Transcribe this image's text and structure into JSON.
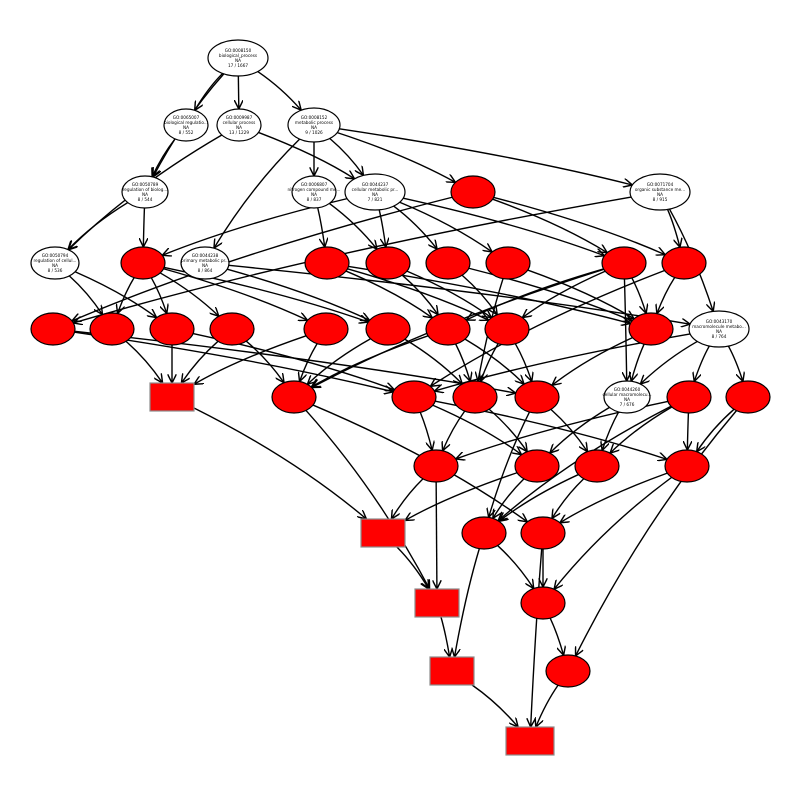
{
  "graph": {
    "nodes": [
      {
        "id": "n1",
        "lines": [
          "GO:0008150",
          "biological_process",
          "NA",
          "17 / 1667"
        ],
        "fill": "#ffffff",
        "shape": "ellipse"
      },
      {
        "id": "n2",
        "lines": [
          "GO:0065007",
          "biological regulatio...",
          "NA",
          "8 / 552"
        ],
        "fill": "#ffffff",
        "shape": "ellipse"
      },
      {
        "id": "n3",
        "lines": [
          "GO:0009987",
          "cellular process",
          "NA",
          "13 / 1229"
        ],
        "fill": "#ffffff",
        "shape": "ellipse"
      },
      {
        "id": "n4",
        "lines": [
          "GO:0008152",
          "metabolic process",
          "NA",
          "9 / 1026"
        ],
        "fill": "#ffffff",
        "shape": "ellipse"
      },
      {
        "id": "n5",
        "lines": [
          "GO:0050789",
          "regulation of biolog...",
          "NA",
          "8 / 544"
        ],
        "fill": "#ffffff",
        "shape": "ellipse"
      },
      {
        "id": "n6",
        "lines": [
          "GO:0006807",
          "nitrogen compound me...",
          "NA",
          "8 / 837"
        ],
        "fill": "#ffffff",
        "shape": "ellipse"
      },
      {
        "id": "n7",
        "lines": [
          "GO:0044237",
          "cellular metabolic pr...",
          "NA",
          "7 / 821"
        ],
        "fill": "#ffffff",
        "shape": "ellipse"
      },
      {
        "id": "n8",
        "lines": [
          "",
          "",
          "",
          ""
        ],
        "fill": "#ff0000",
        "shape": "ellipse"
      },
      {
        "id": "n9",
        "lines": [
          "GO:0071704",
          "organic substance me...",
          "NA",
          "8 / 915"
        ],
        "fill": "#ffffff",
        "shape": "ellipse"
      },
      {
        "id": "n10",
        "lines": [
          "GO:0050794",
          "regulation of cellul...",
          "NA",
          "8 / 536"
        ],
        "fill": "#ffffff",
        "shape": "ellipse"
      },
      {
        "id": "n11",
        "lines": [
          "",
          "",
          "",
          ""
        ],
        "fill": "#ff0000",
        "shape": "ellipse"
      },
      {
        "id": "n12",
        "lines": [
          "GO:0044238",
          "primary metabolic pr...",
          "NA",
          "8 / 864"
        ],
        "fill": "#ffffff",
        "shape": "ellipse"
      },
      {
        "id": "n13",
        "lines": [
          "",
          "",
          "",
          ""
        ],
        "fill": "#ff0000",
        "shape": "ellipse"
      },
      {
        "id": "n14",
        "lines": [
          "",
          "",
          "",
          ""
        ],
        "fill": "#ff0000",
        "shape": "ellipse"
      },
      {
        "id": "n15",
        "lines": [
          "",
          "",
          "",
          ""
        ],
        "fill": "#ff0000",
        "shape": "ellipse"
      },
      {
        "id": "n16",
        "lines": [
          "",
          "",
          "",
          ""
        ],
        "fill": "#ff0000",
        "shape": "ellipse"
      },
      {
        "id": "n17",
        "lines": [
          "",
          "",
          "",
          ""
        ],
        "fill": "#ff0000",
        "shape": "ellipse"
      },
      {
        "id": "n18",
        "lines": [
          "",
          "",
          "",
          ""
        ],
        "fill": "#ff0000",
        "shape": "ellipse"
      },
      {
        "id": "n19",
        "lines": [
          "",
          "",
          "",
          ""
        ],
        "fill": "#ff0000",
        "shape": "ellipse"
      },
      {
        "id": "n20",
        "lines": [
          "",
          "",
          "",
          ""
        ],
        "fill": "#ff0000",
        "shape": "ellipse"
      },
      {
        "id": "n21",
        "lines": [
          "",
          "",
          "",
          ""
        ],
        "fill": "#ff0000",
        "shape": "ellipse"
      },
      {
        "id": "n22",
        "lines": [
          "",
          "",
          "",
          ""
        ],
        "fill": "#ff0000",
        "shape": "ellipse"
      },
      {
        "id": "n23",
        "lines": [
          "",
          "",
          "",
          ""
        ],
        "fill": "#ff0000",
        "shape": "ellipse"
      },
      {
        "id": "n24",
        "lines": [
          "",
          "",
          "",
          ""
        ],
        "fill": "#ff0000",
        "shape": "ellipse"
      },
      {
        "id": "n25",
        "lines": [
          "",
          "",
          "",
          ""
        ],
        "fill": "#ff0000",
        "shape": "ellipse"
      },
      {
        "id": "n26",
        "lines": [
          "",
          "",
          "",
          ""
        ],
        "fill": "#ff0000",
        "shape": "ellipse"
      },
      {
        "id": "n27",
        "lines": [
          "",
          "",
          "",
          ""
        ],
        "fill": "#ff0000",
        "shape": "ellipse"
      },
      {
        "id": "n28",
        "lines": [
          "GO:0043170",
          "macromolecule metabo...",
          "NA",
          "8 / 764"
        ],
        "fill": "#ffffff",
        "shape": "ellipse"
      },
      {
        "id": "n29",
        "lines": [
          "",
          "",
          "",
          ""
        ],
        "fill": "#ff0000",
        "shape": "box"
      },
      {
        "id": "n30",
        "lines": [
          "",
          "",
          "",
          ""
        ],
        "fill": "#ff0000",
        "shape": "ellipse"
      },
      {
        "id": "n31",
        "lines": [
          "",
          "",
          "",
          ""
        ],
        "fill": "#ff0000",
        "shape": "ellipse"
      },
      {
        "id": "n32",
        "lines": [
          "",
          "",
          "",
          ""
        ],
        "fill": "#ff0000",
        "shape": "ellipse"
      },
      {
        "id": "n33",
        "lines": [
          "",
          "",
          "",
          ""
        ],
        "fill": "#ff0000",
        "shape": "ellipse"
      },
      {
        "id": "n34",
        "lines": [
          "GO:0044260",
          "cellular macromolecu...",
          "NA",
          "7 / 676"
        ],
        "fill": "#ffffff",
        "shape": "ellipse"
      },
      {
        "id": "n35",
        "lines": [
          "",
          "",
          "",
          ""
        ],
        "fill": "#ff0000",
        "shape": "ellipse"
      },
      {
        "id": "n36",
        "lines": [
          "",
          "",
          "",
          ""
        ],
        "fill": "#ff0000",
        "shape": "ellipse"
      },
      {
        "id": "n37",
        "lines": [
          "",
          "",
          "",
          ""
        ],
        "fill": "#ff0000",
        "shape": "ellipse"
      },
      {
        "id": "n38",
        "lines": [
          "",
          "",
          "",
          ""
        ],
        "fill": "#ff0000",
        "shape": "ellipse"
      },
      {
        "id": "n39",
        "lines": [
          "",
          "",
          "",
          ""
        ],
        "fill": "#ff0000",
        "shape": "ellipse"
      },
      {
        "id": "n40",
        "lines": [
          "",
          "",
          "",
          ""
        ],
        "fill": "#ff0000",
        "shape": "ellipse"
      },
      {
        "id": "n41",
        "lines": [
          "",
          "",
          "",
          ""
        ],
        "fill": "#ff0000",
        "shape": "box"
      },
      {
        "id": "n42",
        "lines": [
          "",
          "",
          "",
          ""
        ],
        "fill": "#ff0000",
        "shape": "ellipse"
      },
      {
        "id": "n43",
        "lines": [
          "",
          "",
          "",
          ""
        ],
        "fill": "#ff0000",
        "shape": "ellipse"
      },
      {
        "id": "n44",
        "lines": [
          "",
          "",
          "",
          ""
        ],
        "fill": "#ff0000",
        "shape": "box"
      },
      {
        "id": "n45",
        "lines": [
          "",
          "",
          "",
          ""
        ],
        "fill": "#ff0000",
        "shape": "ellipse"
      },
      {
        "id": "n46",
        "lines": [
          "",
          "",
          "",
          ""
        ],
        "fill": "#ff0000",
        "shape": "ellipse"
      },
      {
        "id": "n47",
        "lines": [
          "",
          "",
          "",
          ""
        ],
        "fill": "#ff0000",
        "shape": "box"
      },
      {
        "id": "n48",
        "lines": [
          "",
          "",
          "",
          ""
        ],
        "fill": "#ff0000",
        "shape": "box"
      }
    ],
    "edges": [
      [
        "n1",
        "n2"
      ],
      [
        "n1",
        "n3"
      ],
      [
        "n1",
        "n4"
      ],
      [
        "n1",
        "n5"
      ],
      [
        "n2",
        "n5"
      ],
      [
        "n3",
        "n10"
      ],
      [
        "n3",
        "n7"
      ],
      [
        "n4",
        "n6"
      ],
      [
        "n4",
        "n7"
      ],
      [
        "n4",
        "n8"
      ],
      [
        "n4",
        "n9"
      ],
      [
        "n4",
        "n12"
      ],
      [
        "n5",
        "n10"
      ],
      [
        "n5",
        "n11"
      ],
      [
        "n6",
        "n14"
      ],
      [
        "n6",
        "n13"
      ],
      [
        "n7",
        "n14"
      ],
      [
        "n7",
        "n15"
      ],
      [
        "n7",
        "n16"
      ],
      [
        "n7",
        "n17"
      ],
      [
        "n7",
        "n11"
      ],
      [
        "n8",
        "n17"
      ],
      [
        "n8",
        "n18"
      ],
      [
        "n8",
        "n19"
      ],
      [
        "n9",
        "n18"
      ],
      [
        "n9",
        "n19"
      ],
      [
        "n9",
        "n28"
      ],
      [
        "n10",
        "n20"
      ],
      [
        "n10",
        "n21"
      ],
      [
        "n11",
        "n20"
      ],
      [
        "n11",
        "n21"
      ],
      [
        "n11",
        "n22"
      ],
      [
        "n11",
        "n23"
      ],
      [
        "n11",
        "n24"
      ],
      [
        "n12",
        "n24"
      ],
      [
        "n12",
        "n28"
      ],
      [
        "n13",
        "n25"
      ],
      [
        "n13",
        "n26"
      ],
      [
        "n13",
        "n27"
      ],
      [
        "n14",
        "n25"
      ],
      [
        "n14",
        "n26"
      ],
      [
        "n15",
        "n26"
      ],
      [
        "n15",
        "n27"
      ],
      [
        "n16",
        "n27"
      ],
      [
        "n16",
        "n32"
      ],
      [
        "n17",
        "n25"
      ],
      [
        "n17",
        "n26"
      ],
      [
        "n17",
        "n27"
      ],
      [
        "n17",
        "n30"
      ],
      [
        "n17",
        "n34"
      ],
      [
        "n18",
        "n27"
      ],
      [
        "n18",
        "n31"
      ],
      [
        "n19",
        "n31"
      ],
      [
        "n19",
        "n33"
      ],
      [
        "n20",
        "n29"
      ],
      [
        "n21",
        "n29"
      ],
      [
        "n21",
        "n31"
      ],
      [
        "n22",
        "n29"
      ],
      [
        "n22",
        "n30"
      ],
      [
        "n23",
        "n30"
      ],
      [
        "n23",
        "n29"
      ],
      [
        "n24",
        "n30"
      ],
      [
        "n24",
        "n32"
      ],
      [
        "n25",
        "n30"
      ],
      [
        "n25",
        "n32"
      ],
      [
        "n25",
        "n33"
      ],
      [
        "n26",
        "n32"
      ],
      [
        "n26",
        "n33"
      ],
      [
        "n27",
        "n33"
      ],
      [
        "n27",
        "n34"
      ],
      [
        "n28",
        "n34"
      ],
      [
        "n28",
        "n35"
      ],
      [
        "n28",
        "n36"
      ],
      [
        "n28",
        "n31"
      ],
      [
        "n29",
        "n41"
      ],
      [
        "n30",
        "n43"
      ],
      [
        "n30",
        "n44"
      ],
      [
        "n31",
        "n37"
      ],
      [
        "n31",
        "n40"
      ],
      [
        "n31",
        "n38"
      ],
      [
        "n32",
        "n38"
      ],
      [
        "n32",
        "n37"
      ],
      [
        "n33",
        "n39"
      ],
      [
        "n33",
        "n42"
      ],
      [
        "n34",
        "n38"
      ],
      [
        "n34",
        "n39"
      ],
      [
        "n35",
        "n37"
      ],
      [
        "n35",
        "n39"
      ],
      [
        "n35",
        "n42"
      ],
      [
        "n35",
        "n40"
      ],
      [
        "n36",
        "n40"
      ],
      [
        "n36",
        "n46"
      ],
      [
        "n37",
        "n41"
      ],
      [
        "n37",
        "n44"
      ],
      [
        "n38",
        "n41"
      ],
      [
        "n38",
        "n42"
      ],
      [
        "n39",
        "n42"
      ],
      [
        "n39",
        "n43"
      ],
      [
        "n40",
        "n43"
      ],
      [
        "n40",
        "n45"
      ],
      [
        "n41",
        "n44"
      ],
      [
        "n42",
        "n45"
      ],
      [
        "n42",
        "n47"
      ],
      [
        "n43",
        "n45"
      ],
      [
        "n43",
        "n48"
      ],
      [
        "n44",
        "n47"
      ],
      [
        "n45",
        "n46"
      ],
      [
        "n46",
        "n48"
      ],
      [
        "n47",
        "n48"
      ]
    ]
  }
}
